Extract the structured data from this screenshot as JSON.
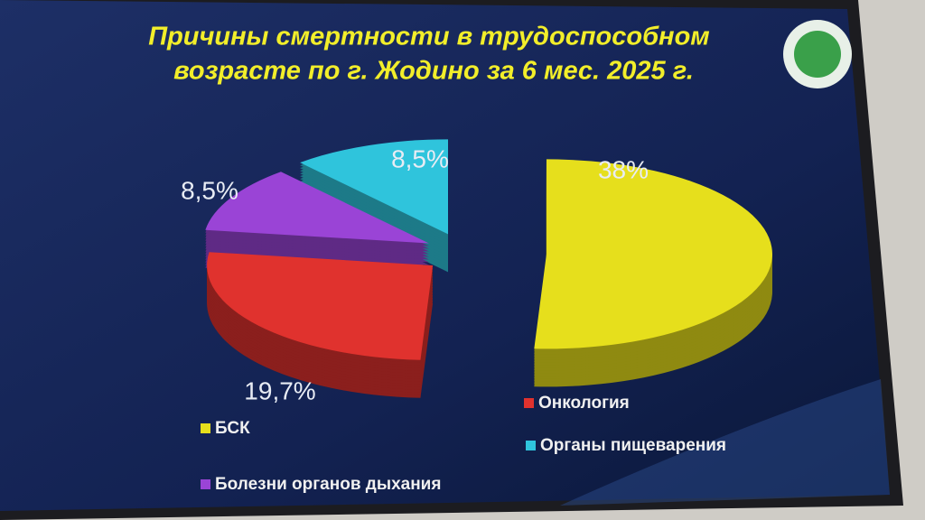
{
  "chart_data": {
    "type": "pie",
    "title": [
      "Причины смертности в  трудоспособном",
      "возрасте по г. Жодино за 6 мес. 2025 г."
    ],
    "categories": [
      "БСК",
      "Онкология",
      "Болезни органов дыхания",
      "Органы пищеварения"
    ],
    "values": [
      38,
      19.7,
      8.5,
      8.5
    ],
    "value_labels": [
      "38%",
      "19,7%",
      "8,5%",
      "8,5%"
    ],
    "colors": [
      "#e6df1c",
      "#e0322e",
      "#9a44d6",
      "#2fc4dc"
    ]
  }
}
